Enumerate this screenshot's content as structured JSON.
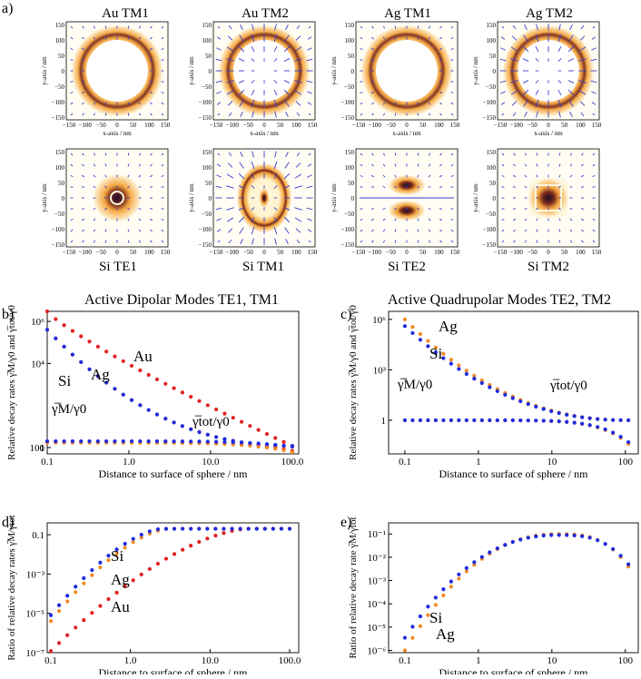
{
  "panel_labels": {
    "a": "a)",
    "b": "b)",
    "c": "c)",
    "d": "d)",
    "e": "e)"
  },
  "heatmaps": {
    "top_titles": [
      "Au TM1",
      "Au TM2",
      "Ag TM1",
      "Ag TM2"
    ],
    "bottom_titles": [
      "Si TE1",
      "Si TM1",
      "Si TE2",
      "Si TM2"
    ],
    "axis_label_x": "x-axis / nm",
    "axis_label_y": "y-axis / nm",
    "y_ticks": [
      "150",
      "100",
      "50",
      "0",
      "−50",
      "−100",
      "−150"
    ],
    "x_ticks": [
      "−150",
      "−100",
      "−50",
      "0",
      "50",
      "100",
      "150"
    ],
    "colors": {
      "field_low": "#fff8e0",
      "field_mid": "#f4a640",
      "field_high": "#7a2a1a",
      "core": "#1a0f2e",
      "arrows": "#3b3bd0"
    }
  },
  "section_titles": {
    "left": "Active Dipolar Modes TE1, TM1",
    "right": "Active Quadrupolar Modes TE2, TM2"
  },
  "colors": {
    "Au": "#e02020",
    "Ag": "#f08a24",
    "Si": "#1f2ae0"
  },
  "chart_data": [
    {
      "id": "b",
      "type": "scatter",
      "xscale": "log",
      "yscale": "log",
      "xlim": [
        0.1,
        120
      ],
      "ylim": [
        0.5,
        3000000
      ],
      "xticks": [
        "0.1",
        "1.0",
        "10.0",
        "100.0"
      ],
      "yticks": [
        "1",
        "100",
        "10⁴",
        "10⁶"
      ],
      "ylabel": "Relative decay rates γ̅M/γ0 and γ̅tot/γ0",
      "xlabel": "Distance to surface of sphere / nm",
      "annotations": [
        "Au",
        "Ag",
        "Si",
        "γ̅M/γ0",
        "γ̅tot/γ0"
      ],
      "series": [
        {
          "name": "Au",
          "metric": "tot",
          "start": 3000000,
          "end": 1.2,
          "shape": "steep"
        },
        {
          "name": "Ag",
          "metric": "tot",
          "start": 400000,
          "end": 1.2,
          "shape": "medium"
        },
        {
          "name": "Si",
          "metric": "tot",
          "start": 400000,
          "end": 1.2,
          "shape": "medium"
        },
        {
          "name": "Au",
          "metric": "M",
          "start": 1.8,
          "end": 0.7,
          "shape": "flat"
        },
        {
          "name": "Ag",
          "metric": "M",
          "start": 1.7,
          "end": 0.6,
          "shape": "flat"
        },
        {
          "name": "Si",
          "metric": "M",
          "start": 2.0,
          "end": 1.1,
          "shape": "flat"
        }
      ]
    },
    {
      "id": "c",
      "type": "scatter",
      "xscale": "log",
      "yscale": "log",
      "xlim": [
        0.06,
        150
      ],
      "ylim": [
        0.01,
        3000000
      ],
      "xticks": [
        "0.1",
        "1",
        "10",
        "100"
      ],
      "yticks": [
        "1",
        "10³",
        "10⁶"
      ],
      "ylabel": "Relative decay rates γ̅M/γ0 and γ̅tot/γ0",
      "xlabel": "Distance to surface of sphere / nm",
      "annotations": [
        "Ag",
        "Si",
        "γ̅M/γ0",
        "γ̅tot/γ0"
      ],
      "series": [
        {
          "name": "Ag",
          "metric": "tot",
          "start": 1000000,
          "end": 1.0,
          "shape": "medium"
        },
        {
          "name": "Si",
          "metric": "tot",
          "start": 400000,
          "end": 1.0,
          "shape": "medium"
        },
        {
          "name": "Ag",
          "metric": "M",
          "start": 1.0,
          "end": 0.04,
          "shape": "drop"
        },
        {
          "name": "Si",
          "metric": "M",
          "start": 1.0,
          "end": 0.05,
          "shape": "drop"
        }
      ]
    },
    {
      "id": "d",
      "type": "scatter",
      "xscale": "log",
      "yscale": "log",
      "xlim": [
        0.09,
        130
      ],
      "ylim": [
        1e-07,
        0.4
      ],
      "xticks": [
        "0.1",
        "1.0",
        "10.0",
        "100.0"
      ],
      "yticks": [
        "10⁻⁷",
        "10⁻⁵",
        "10⁻³",
        "0.1"
      ],
      "ylabel": "Ratio of relative decay rates γ̅M/γ̅tot",
      "xlabel": "Distance to surface of sphere / nm",
      "annotations": [
        "Si",
        "Ag",
        "Au"
      ],
      "series": [
        {
          "name": "Au",
          "start": 1.2e-07,
          "plateau": 0.2,
          "knee": 30
        },
        {
          "name": "Ag",
          "start": 4e-06,
          "plateau": 0.2,
          "knee": 3
        },
        {
          "name": "Si",
          "start": 8e-06,
          "plateau": 0.2,
          "knee": 2.5
        }
      ]
    },
    {
      "id": "e",
      "type": "scatter",
      "xscale": "log",
      "yscale": "log",
      "xlim": [
        0.06,
        150
      ],
      "ylim": [
        8e-07,
        0.3
      ],
      "xticks": [
        "0.1",
        "1",
        "10",
        "100"
      ],
      "yticks": [
        "10⁻⁶",
        "10⁻⁵",
        "10⁻⁴",
        "10⁻³",
        "10⁻²",
        "10⁻¹"
      ],
      "ylabel": "Ratio of relative decay rate γ̅M/γ̅tot",
      "xlabel": "Distance to surface of sphere / nm",
      "annotations": [
        "Si",
        "Ag"
      ],
      "series": [
        {
          "name": "Ag",
          "start": 1e-06,
          "peak": 0.1,
          "end": 0.004
        },
        {
          "name": "Si",
          "start": 3.5e-06,
          "peak": 0.09,
          "end": 0.005
        }
      ]
    }
  ]
}
